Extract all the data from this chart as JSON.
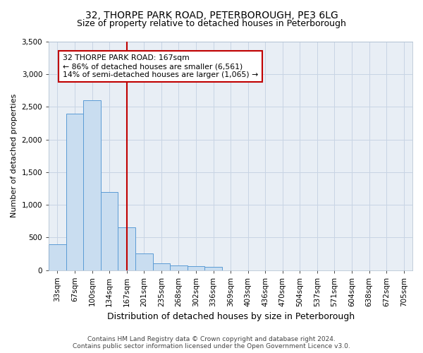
{
  "title": "32, THORPE PARK ROAD, PETERBOROUGH, PE3 6LG",
  "subtitle": "Size of property relative to detached houses in Peterborough",
  "xlabel": "Distribution of detached houses by size in Peterborough",
  "ylabel": "Number of detached properties",
  "categories": [
    "33sqm",
    "67sqm",
    "100sqm",
    "134sqm",
    "167sqm",
    "201sqm",
    "235sqm",
    "268sqm",
    "302sqm",
    "336sqm",
    "369sqm",
    "403sqm",
    "436sqm",
    "470sqm",
    "504sqm",
    "537sqm",
    "571sqm",
    "604sqm",
    "638sqm",
    "672sqm",
    "705sqm"
  ],
  "values": [
    400,
    2400,
    2600,
    1200,
    650,
    250,
    100,
    70,
    60,
    50,
    0,
    0,
    0,
    0,
    0,
    0,
    0,
    0,
    0,
    0,
    0
  ],
  "bar_color": "#c9ddf0",
  "bar_edge_color": "#5b9bd5",
  "marker_idx": 4,
  "marker_line_color": "#c00000",
  "annotation_line1": "32 THORPE PARK ROAD: 167sqm",
  "annotation_line2": "← 86% of detached houses are smaller (6,561)",
  "annotation_line3": "14% of semi-detached houses are larger (1,065) →",
  "annotation_box_color": "#c00000",
  "ylim": [
    0,
    3500
  ],
  "yticks": [
    0,
    500,
    1000,
    1500,
    2000,
    2500,
    3000,
    3500
  ],
  "footer1": "Contains HM Land Registry data © Crown copyright and database right 2024.",
  "footer2": "Contains public sector information licensed under the Open Government Licence v3.0.",
  "bg_color": "#ffffff",
  "plot_bg_color": "#e8eef5",
  "grid_color": "#c8d4e4",
  "title_fontsize": 10,
  "subtitle_fontsize": 9,
  "ylabel_fontsize": 8,
  "xlabel_fontsize": 9,
  "tick_fontsize": 7.5,
  "footer_fontsize": 6.5,
  "annotation_fontsize": 7.8
}
